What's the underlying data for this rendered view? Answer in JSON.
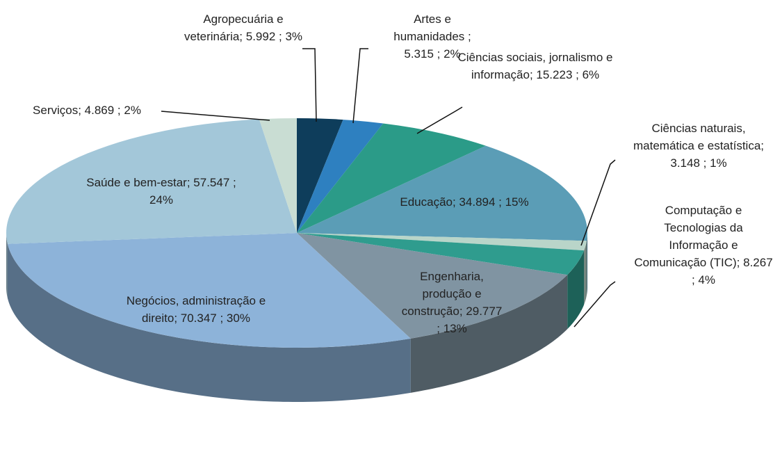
{
  "chart_data": {
    "type": "pie",
    "values": [
      5992,
      5315,
      15223,
      34894,
      3148,
      8267,
      29777,
      70347,
      57547,
      4869
    ],
    "value_labels": [
      "Agropecuária e veterinária; 5.992 ; 3%",
      "Artes e humanidades ; 5.315 ; 2%",
      "Ciências sociais, jornalismo e informação; 15.223 ; 6%",
      "Educação; 34.894 ; 15%",
      "Ciências naturais, matemática e estatística; 3.148 ; 1%",
      "Computação e Tecnologias da Informação e Comunicação (TIC); 8.267 ; 4%",
      "Engenharia, produção e construção; 29.777 ; 13%",
      "Negócios, administração e direito; 70.347 ; 30%",
      "Saúde e bem-estar; 57.547 ; 24%",
      "Serviços; 4.869 ; 2%"
    ],
    "colors": [
      "#0e3d5b",
      "#2e80c0",
      "#2b9b88",
      "#5b9db6",
      "#b9d5c9",
      "#2f9c8e",
      "#8094a2",
      "#8db3d9",
      "#a3c7d9",
      "#c9ddd3"
    ]
  }
}
